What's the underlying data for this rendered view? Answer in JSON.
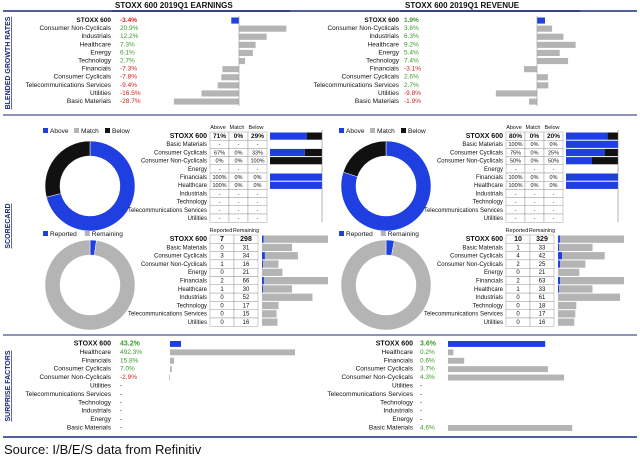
{
  "left_title": "STOXX 600 2019Q1 EARNINGS",
  "right_title": "STOXX 600 2019Q1 REVENUE",
  "section_labels": {
    "growth": "BLENDED GROWTH RATES",
    "scorecard": "SCORECARD",
    "surprise": "SURPRISE FACTORS"
  },
  "colors": {
    "blue": "#1f3fe0",
    "gray": "#b4b4b4",
    "black": "#111111",
    "green": "#3a9a2a",
    "red": "#d42020",
    "navy": "#1a2a7a"
  },
  "headers": {
    "above": "Above",
    "match": "Match",
    "below": "Below",
    "reported": "Reported",
    "remaining": "Remaining"
  },
  "source": "Source: I/B/E/S data from Refinitiv",
  "chart_data": [
    {
      "id": "earnings_growth",
      "type": "bar",
      "title": "Blended Growth Rates - Earnings",
      "unit": "%",
      "categories": [
        "STOXX 600",
        "Consumer Non-Cyclicals",
        "Industrials",
        "Healthcare",
        "Energy",
        "Technology",
        "Financials",
        "Consumer Cyclicals",
        "Telecommunications Services",
        "Utilities",
        "Basic Materials"
      ],
      "labels": [
        "-3.4%",
        "20.9%",
        "12.2%",
        "7.3%",
        "6.1%",
        "2.7%",
        "-7.3%",
        "-7.8%",
        "-9.4%",
        "-16.5%",
        "-28.7%"
      ],
      "values": [
        -3.4,
        20.9,
        12.2,
        7.3,
        6.1,
        2.7,
        -7.3,
        -7.8,
        -9.4,
        -16.5,
        -28.7
      ]
    },
    {
      "id": "revenue_growth",
      "type": "bar",
      "title": "Blended Growth Rates - Revenue",
      "unit": "%",
      "categories": [
        "STOXX 600",
        "Consumer Non-Cyclicals",
        "Industrials",
        "Healthcare",
        "Energy",
        "Technology",
        "Financials",
        "Consumer Cyclicals",
        "Telecommunications Services",
        "Utilities",
        "Basic Materials"
      ],
      "labels": [
        "1.9%",
        "3.6%",
        "6.3%",
        "9.2%",
        "5.4%",
        "7.4%",
        "-3.1%",
        "2.6%",
        "2.7%",
        "-9.8%",
        "-1.9%"
      ],
      "values": [
        1.9,
        3.6,
        6.3,
        9.2,
        5.4,
        7.4,
        -3.1,
        2.6,
        2.7,
        -9.8,
        -1.9
      ]
    },
    {
      "id": "earnings_scorecard",
      "type": "table",
      "title": "Scorecard - Earnings (Above/Match/Below)",
      "rows": [
        {
          "name": "STOXX 600",
          "above": "71%",
          "match": "0%",
          "below": "29%"
        },
        {
          "name": "Basic Materials",
          "above": "-",
          "match": "-",
          "below": "-"
        },
        {
          "name": "Consumer Cyclicals",
          "above": "67%",
          "match": "0%",
          "below": "33%"
        },
        {
          "name": "Consumer Non-Cyclicals",
          "above": "0%",
          "match": "0%",
          "below": "100%"
        },
        {
          "name": "Energy",
          "above": "-",
          "match": "-",
          "below": "-"
        },
        {
          "name": "Financials",
          "above": "100%",
          "match": "0%",
          "below": "0%"
        },
        {
          "name": "Healthcare",
          "above": "100%",
          "match": "0%",
          "below": "0%"
        },
        {
          "name": "Industrials",
          "above": "-",
          "match": "-",
          "below": "-"
        },
        {
          "name": "Technology",
          "above": "-",
          "match": "-",
          "below": "-"
        },
        {
          "name": "Telecommunications Services",
          "above": "-",
          "match": "-",
          "below": "-"
        },
        {
          "name": "Utilities",
          "above": "-",
          "match": "-",
          "below": "-"
        }
      ],
      "pie": [
        71,
        0,
        29
      ]
    },
    {
      "id": "revenue_scorecard",
      "type": "table",
      "title": "Scorecard - Revenue (Above/Match/Below)",
      "rows": [
        {
          "name": "STOXX 600",
          "above": "80%",
          "match": "0%",
          "below": "20%"
        },
        {
          "name": "Basic Materials",
          "above": "100%",
          "match": "0%",
          "below": "0%"
        },
        {
          "name": "Consumer Cyclicals",
          "above": "75%",
          "match": "0%",
          "below": "25%"
        },
        {
          "name": "Consumer Non-Cyclicals",
          "above": "50%",
          "match": "0%",
          "below": "50%"
        },
        {
          "name": "Energy",
          "above": "-",
          "match": "-",
          "below": "-"
        },
        {
          "name": "Financials",
          "above": "100%",
          "match": "0%",
          "below": "0%"
        },
        {
          "name": "Healthcare",
          "above": "100%",
          "match": "0%",
          "below": "0%"
        },
        {
          "name": "Industrials",
          "above": "-",
          "match": "-",
          "below": "-"
        },
        {
          "name": "Technology",
          "above": "-",
          "match": "-",
          "below": "-"
        },
        {
          "name": "Telecommunications Services",
          "above": "-",
          "match": "-",
          "below": "-"
        },
        {
          "name": "Utilities",
          "above": "-",
          "match": "-",
          "below": "-"
        }
      ],
      "pie": [
        80,
        0,
        20
      ]
    },
    {
      "id": "earnings_reported",
      "type": "table",
      "title": "Reported vs Remaining - Earnings",
      "rows": [
        {
          "name": "STOXX 600",
          "reported": 7,
          "remaining": 298
        },
        {
          "name": "Basic Materials",
          "reported": 0,
          "remaining": 31
        },
        {
          "name": "Consumer Cyclicals",
          "reported": 3,
          "remaining": 34
        },
        {
          "name": "Consumer Non-Cyclicals",
          "reported": 1,
          "remaining": 16
        },
        {
          "name": "Energy",
          "reported": 0,
          "remaining": 21
        },
        {
          "name": "Financials",
          "reported": 2,
          "remaining": 66
        },
        {
          "name": "Healthcare",
          "reported": 1,
          "remaining": 30
        },
        {
          "name": "Industrials",
          "reported": 0,
          "remaining": 52
        },
        {
          "name": "Technology",
          "reported": 0,
          "remaining": 17
        },
        {
          "name": "Telecommunications Services",
          "reported": 0,
          "remaining": 15
        },
        {
          "name": "Utilities",
          "reported": 0,
          "remaining": 16
        }
      ]
    },
    {
      "id": "revenue_reported",
      "type": "table",
      "title": "Reported vs Remaining - Revenue",
      "rows": [
        {
          "name": "STOXX 600",
          "reported": 10,
          "remaining": 329
        },
        {
          "name": "Basic Materials",
          "reported": 1,
          "remaining": 33
        },
        {
          "name": "Consumer Cyclicals",
          "reported": 4,
          "remaining": 42
        },
        {
          "name": "Consumer Non-Cyclicals",
          "reported": 2,
          "remaining": 25
        },
        {
          "name": "Energy",
          "reported": 0,
          "remaining": 21
        },
        {
          "name": "Financials",
          "reported": 2,
          "remaining": 63
        },
        {
          "name": "Healthcare",
          "reported": 1,
          "remaining": 33
        },
        {
          "name": "Industrials",
          "reported": 0,
          "remaining": 61
        },
        {
          "name": "Technology",
          "reported": 0,
          "remaining": 18
        },
        {
          "name": "Telecommunications Services",
          "reported": 0,
          "remaining": 17
        },
        {
          "name": "Utilities",
          "reported": 0,
          "remaining": 16
        }
      ]
    },
    {
      "id": "earnings_surprise",
      "type": "bar",
      "title": "Surprise Factors - Earnings",
      "unit": "%",
      "categories": [
        "STOXX 600",
        "Healthcare",
        "Financials",
        "Consumer Cyclicals",
        "Consumer Non-Cyclicals",
        "Utilities",
        "Telecommunications Services",
        "Technology",
        "Industrials",
        "Energy",
        "Basic Materials"
      ],
      "labels": [
        "43.2%",
        "492.3%",
        "15.8%",
        "7.0%",
        "-2.9%",
        "-",
        "-",
        "-",
        "-",
        "-",
        "-"
      ],
      "values": [
        43.2,
        492.3,
        15.8,
        7.0,
        -2.9,
        null,
        null,
        null,
        null,
        null,
        null
      ]
    },
    {
      "id": "revenue_surprise",
      "type": "bar",
      "title": "Surprise Factors - Revenue",
      "unit": "%",
      "categories": [
        "STOXX 600",
        "Healthcare",
        "Financials",
        "Consumer Cyclicals",
        "Consumer Non-Cyclicals",
        "Utilities",
        "Telecommunications Services",
        "Technology",
        "Industrials",
        "Energy",
        "Basic Materials"
      ],
      "labels": [
        "3.6%",
        "0.2%",
        "0.6%",
        "3.7%",
        "4.3%",
        "-",
        "-",
        "-",
        "-",
        "-",
        "4.6%"
      ],
      "values": [
        3.6,
        0.2,
        0.6,
        3.7,
        4.3,
        null,
        null,
        null,
        null,
        null,
        4.6
      ]
    }
  ]
}
